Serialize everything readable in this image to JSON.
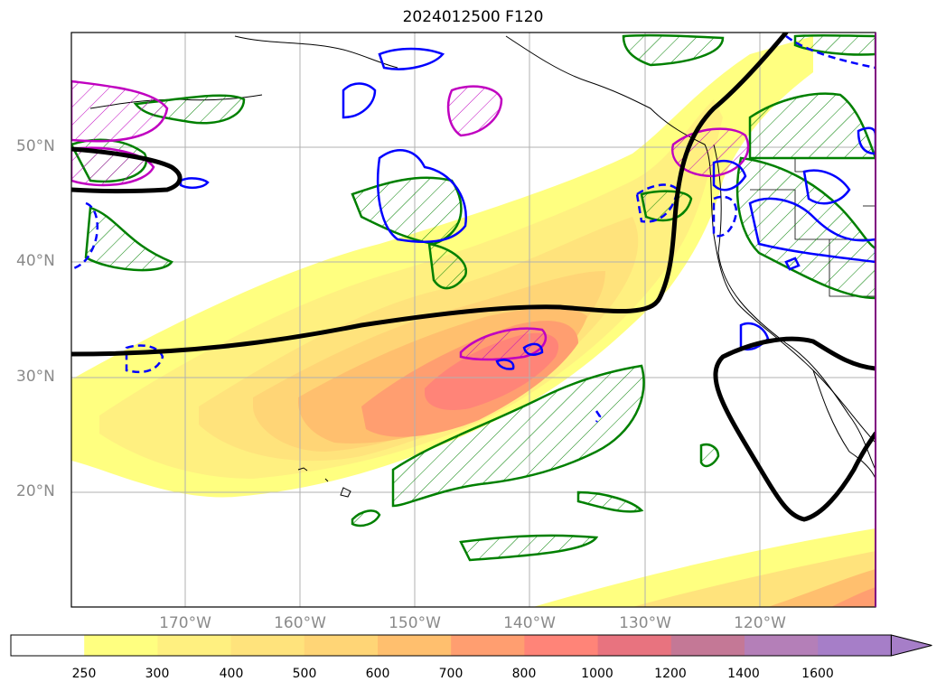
{
  "title": "2024012500 F120",
  "lat_labels": [
    "50°N",
    "40°N",
    "30°N",
    "20°N"
  ],
  "lon_labels": [
    "170°W",
    "160°W",
    "150°W",
    "140°W",
    "130°W",
    "120°W"
  ],
  "colorbar": {
    "ticks": [
      "250",
      "300",
      "400",
      "500",
      "600",
      "700",
      "800",
      "1000",
      "1200",
      "1400",
      "1600"
    ],
    "colors": [
      "#ffffff",
      "#ffff80",
      "#fff080",
      "#ffe37c",
      "#ffd576",
      "#ffbf6e",
      "#ff9e70",
      "#ff8478",
      "#e8737f",
      "#c47896",
      "#b47fb8",
      "#a67ec8"
    ]
  },
  "legend_colors": {
    "height_contour": "#000000",
    "green_hatched": "#008000",
    "blue_contour": "#0000ff",
    "magenta_hatched": "#c000c0"
  }
}
